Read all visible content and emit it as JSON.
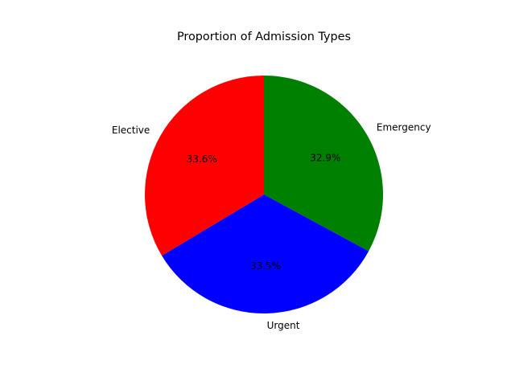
{
  "chart_data": {
    "type": "pie",
    "title": "Proportion of Admission Types",
    "labels": [
      "Emergency",
      "Urgent",
      "Elective"
    ],
    "values": [
      32.9,
      33.5,
      33.6
    ],
    "percent_labels": [
      "32.9%",
      "33.5%",
      "33.6%"
    ],
    "colors": [
      "#008000",
      "#0000ff",
      "#ff0000"
    ],
    "start_angle_deg": 90,
    "direction": "clockwise",
    "legend": "none"
  }
}
